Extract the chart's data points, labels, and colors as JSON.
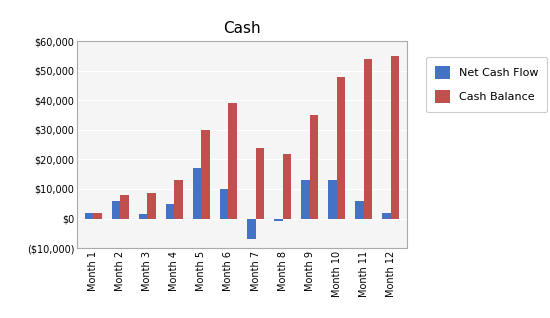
{
  "title": "Cash",
  "categories": [
    "Month 1",
    "Month 2",
    "Month 3",
    "Month 4",
    "Month 5",
    "Month 6",
    "Month 7",
    "Month 8",
    "Month 9",
    "Month 10",
    "Month 11",
    "Month 12"
  ],
  "net_cash_flow": [
    2000,
    6000,
    1500,
    5000,
    17000,
    10000,
    -7000,
    -1000,
    13000,
    13000,
    6000,
    2000
  ],
  "cash_balance": [
    2000,
    8000,
    8500,
    13000,
    30000,
    39000,
    24000,
    22000,
    35000,
    48000,
    54000,
    55000
  ],
  "bar_color_blue": "#4472C4",
  "bar_color_red": "#C0504D",
  "legend_labels": [
    "Net Cash Flow",
    "Cash Balance"
  ],
  "ylim": [
    -10000,
    60000
  ],
  "yticks": [
    -10000,
    0,
    10000,
    20000,
    30000,
    40000,
    50000,
    60000
  ],
  "ytick_labels": [
    "($10,000)",
    "$0",
    "$10,000",
    "$20,000",
    "$30,000",
    "$40,000",
    "$50,000",
    "$60,000"
  ],
  "background_color": "#ffffff",
  "plot_bg_color": "#f5f5f5",
  "grid_color": "#ffffff",
  "title_fontsize": 11,
  "tick_fontsize": 7,
  "legend_fontsize": 8,
  "bar_width": 0.32
}
